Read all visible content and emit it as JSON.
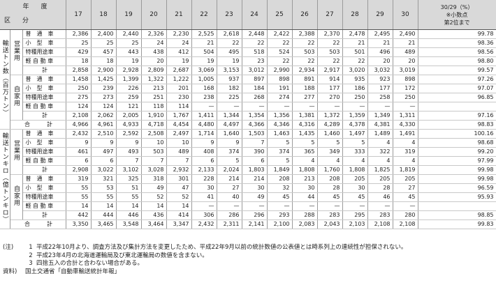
{
  "header": {
    "year_label": "年　度",
    "kubun_label": "区　分",
    "years": [
      "17",
      "18",
      "19",
      "20",
      "21",
      "22",
      "23",
      "24",
      "25",
      "26",
      "27",
      "28",
      "29",
      "30"
    ],
    "ratio_header": [
      "30/29（%）",
      "※小数点",
      "第2位まで"
    ]
  },
  "sections": [
    {
      "name": "輸送トン数（百万トン）",
      "groups": [
        {
          "name": "営業用",
          "rows": [
            {
              "label": "普　通　車",
              "values": [
                "2,386",
                "2,400",
                "2,440",
                "2,326",
                "2,230",
                "2,525",
                "2,618",
                "2,448",
                "2,422",
                "2,388",
                "2,370",
                "2,478",
                "2,495",
                "2,490"
              ],
              "ratio": "99.78"
            },
            {
              "label": "小　型　車",
              "values": [
                "25",
                "25",
                "25",
                "24",
                "24",
                "21",
                "22",
                "22",
                "22",
                "22",
                "22",
                "21",
                "21",
                "21"
              ],
              "ratio": "98.36"
            },
            {
              "label": "特種用途車",
              "values": [
                "429",
                "457",
                "443",
                "438",
                "412",
                "504",
                "495",
                "518",
                "524",
                "503",
                "503",
                "501",
                "496",
                "489"
              ],
              "ratio": "98.56"
            },
            {
              "label": "軽 自 動 車",
              "values": [
                "18",
                "18",
                "19",
                "20",
                "19",
                "19",
                "19",
                "23",
                "22",
                "22",
                "22",
                "22",
                "20",
                "20"
              ],
              "ratio": "98.80"
            },
            {
              "label": "計",
              "values": [
                "2,858",
                "2,900",
                "2,928",
                "2,809",
                "2,687",
                "3,069",
                "3,153",
                "3,012",
                "2,990",
                "2,934",
                "2,917",
                "3,020",
                "3,032",
                "3,019"
              ],
              "ratio": "99.57"
            }
          ]
        },
        {
          "name": "自家用",
          "rows": [
            {
              "label": "普　通　車",
              "values": [
                "1,458",
                "1,425",
                "1,399",
                "1,322",
                "1,222",
                "1,005",
                "937",
                "897",
                "898",
                "891",
                "914",
                "935",
                "923",
                "898"
              ],
              "ratio": "97.26"
            },
            {
              "label": "小　型　車",
              "values": [
                "250",
                "239",
                "226",
                "213",
                "201",
                "168",
                "182",
                "184",
                "191",
                "188",
                "177",
                "186",
                "177",
                "172"
              ],
              "ratio": "97.07"
            },
            {
              "label": "特種用途車",
              "values": [
                "275",
                "273",
                "259",
                "251",
                "230",
                "238",
                "225",
                "268",
                "274",
                "277",
                "270",
                "250",
                "258",
                "250"
              ],
              "ratio": "96.85"
            },
            {
              "label": "軽 自 動 車",
              "values": [
                "124",
                "124",
                "121",
                "118",
                "114",
                "—",
                "—",
                "—",
                "—",
                "—",
                "—",
                "—",
                "—",
                "—"
              ],
              "ratio": ""
            },
            {
              "label": "計",
              "values": [
                "2,108",
                "2,062",
                "2,005",
                "1,910",
                "1,767",
                "1,411",
                "1,344",
                "1,354",
                "1,356",
                "1,381",
                "1,372",
                "1,359",
                "1,349",
                "1,311"
              ],
              "ratio": "97.16"
            }
          ]
        }
      ],
      "total": {
        "label": "合　　　計",
        "values": [
          "4,966",
          "4,961",
          "4,933",
          "4,718",
          "4,454",
          "4,480",
          "4,497",
          "4,366",
          "4,346",
          "4,316",
          "4,289",
          "4,378",
          "4,381",
          "4,330"
        ],
        "ratio": "98.83"
      }
    },
    {
      "name": "輸送トンキロ（億トンキロ）",
      "groups": [
        {
          "name": "営業用",
          "rows": [
            {
              "label": "普　通　車",
              "values": [
                "2,432",
                "2,510",
                "2,592",
                "2,508",
                "2,497",
                "1,714",
                "1,640",
                "1,503",
                "1,463",
                "1,435",
                "1,460",
                "1,497",
                "1,489",
                "1,491"
              ],
              "ratio": "100.16"
            },
            {
              "label": "小　型　車",
              "values": [
                "9",
                "9",
                "9",
                "10",
                "10",
                "9",
                "9",
                "7",
                "5",
                "5",
                "5",
                "5",
                "4",
                "4"
              ],
              "ratio": "98.68"
            },
            {
              "label": "特種用途車",
              "values": [
                "461",
                "497",
                "493",
                "503",
                "489",
                "408",
                "374",
                "390",
                "374",
                "365",
                "349",
                "333",
                "322",
                "319"
              ],
              "ratio": "99.20"
            },
            {
              "label": "軽 自 動 車",
              "values": [
                "6",
                "6",
                "7",
                "7",
                "7",
                "6",
                "5",
                "6",
                "5",
                "4",
                "4",
                "4",
                "4",
                "4"
              ],
              "ratio": "97.99"
            },
            {
              "label": "計",
              "values": [
                "2,908",
                "3,022",
                "3,102",
                "3,028",
                "2,932",
                "2,133",
                "2,024",
                "1,803",
                "1,849",
                "1,808",
                "1,760",
                "1,808",
                "1,825",
                "1,819"
              ],
              "ratio": "99.98"
            }
          ]
        },
        {
          "name": "自家用",
          "rows": [
            {
              "label": "普　通　車",
              "values": [
                "319",
                "321",
                "325",
                "318",
                "301",
                "228",
                "214",
                "214",
                "208",
                "213",
                "208",
                "205",
                "205",
                "205"
              ],
              "ratio": "99.98"
            },
            {
              "label": "小　型　車",
              "values": [
                "55",
                "53",
                "51",
                "49",
                "47",
                "30",
                "27",
                "30",
                "32",
                "30",
                "28",
                "30",
                "28",
                "27"
              ],
              "ratio": "96.59"
            },
            {
              "label": "特種用途車",
              "values": [
                "55",
                "55",
                "55",
                "52",
                "52",
                "41",
                "40",
                "49",
                "45",
                "44",
                "45",
                "45",
                "46",
                "45"
              ],
              "ratio": "95.93"
            },
            {
              "label": "軽 自 動 車",
              "values": [
                "14",
                "14",
                "14",
                "14",
                "14",
                "—",
                "—",
                "—",
                "—",
                "—",
                "—",
                "—",
                "—",
                "—"
              ],
              "ratio": ""
            },
            {
              "label": "計",
              "values": [
                "442",
                "444",
                "446",
                "436",
                "414",
                "306",
                "286",
                "296",
                "293",
                "288",
                "283",
                "295",
                "283",
                "280"
              ],
              "ratio": "98.85"
            }
          ]
        }
      ],
      "total": {
        "label": "合　　　計",
        "values": [
          "3,350",
          "3,465",
          "3,548",
          "3,464",
          "3,347",
          "2,432",
          "2,311",
          "2,141",
          "2,100",
          "2,083",
          "2,043",
          "2,103",
          "2,108",
          "2,108"
        ],
        "ratio": "99.83"
      }
    }
  ],
  "notes": {
    "head": "(注)",
    "items": [
      {
        "num": "1",
        "text": "平成22年10月より、調査方法及び集計方法を変更したため、平成22年9月以前の統計数値の公表値とは時系列上の連続性が担保されない。"
      },
      {
        "num": "2",
        "text": "平成23年4月の北海道運輸局及び東北運輸局の数値を含まない。"
      },
      {
        "num": "3",
        "text": "四捨五入の合計と合わない場合がある。"
      }
    ],
    "source_head": "資料)",
    "source": "国土交通省「自動車輸送統計年報」"
  }
}
